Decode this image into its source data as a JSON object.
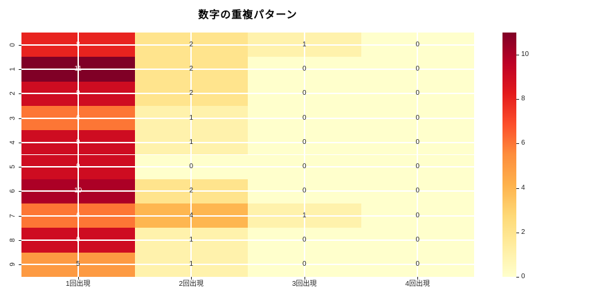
{
  "title": "数字の重複パターン",
  "chart_data": {
    "type": "heatmap",
    "title": "数字の重複パターン",
    "rows": [
      "0",
      "1",
      "2",
      "3",
      "4",
      "5",
      "6",
      "7",
      "8",
      "9"
    ],
    "columns": [
      "1回出現",
      "2回出現",
      "3回出現",
      "4回出現"
    ],
    "values": [
      [
        8,
        2,
        1,
        0
      ],
      [
        11,
        2,
        0,
        0
      ],
      [
        9,
        2,
        0,
        0
      ],
      [
        6,
        1,
        0,
        0
      ],
      [
        9,
        1,
        0,
        0
      ],
      [
        9,
        0,
        0,
        0
      ],
      [
        10,
        2,
        0,
        0
      ],
      [
        6,
        4,
        1,
        0
      ],
      [
        9,
        1,
        0,
        0
      ],
      [
        5,
        1,
        0,
        0
      ]
    ],
    "vmin": 0,
    "vmax": 11,
    "colormap": "YlOrRd",
    "colormap_stops": [
      {
        "t": 0.0,
        "c": "#ffffcc"
      },
      {
        "t": 0.125,
        "c": "#ffeda0"
      },
      {
        "t": 0.25,
        "c": "#fed976"
      },
      {
        "t": 0.375,
        "c": "#feb24c"
      },
      {
        "t": 0.5,
        "c": "#fd8d3c"
      },
      {
        "t": 0.625,
        "c": "#fc4e2a"
      },
      {
        "t": 0.75,
        "c": "#e31a1c"
      },
      {
        "t": 0.875,
        "c": "#bd0026"
      },
      {
        "t": 1.0,
        "c": "#800026"
      }
    ],
    "colorbar_ticks": [
      0,
      2,
      4,
      6,
      8,
      10
    ],
    "grid": true,
    "gridline_color": "#ffffff",
    "annot_color_dark": "#262626",
    "annot_color_light": "#ffffff",
    "legend_position": "right-colorbar"
  }
}
